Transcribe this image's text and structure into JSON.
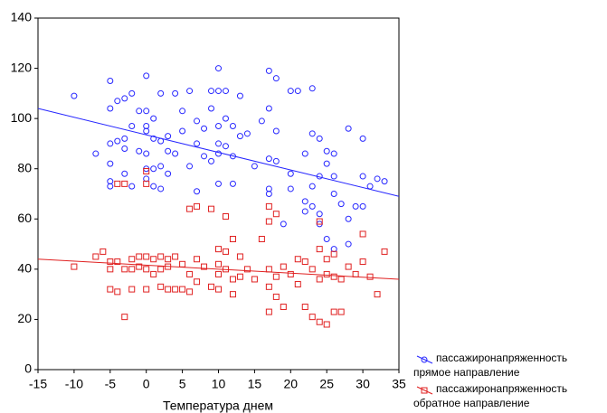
{
  "chart_data": {
    "type": "scatter",
    "x_label": "Температура днем",
    "xlim": [
      -15,
      35
    ],
    "xticks": [
      -15,
      -10,
      -5,
      0,
      5,
      10,
      15,
      20,
      25,
      30,
      35
    ],
    "ylim": [
      0,
      140
    ],
    "yticks": [
      0,
      20,
      40,
      60,
      80,
      100,
      120,
      140
    ],
    "series": [
      {
        "name": "пассажиронапряженность прямое направление",
        "color": "#2626ff",
        "marker": "circle",
        "x": [
          -10,
          -7,
          -5,
          -5,
          -5,
          -5,
          -5,
          -5,
          -4,
          -4,
          -3,
          -3,
          -3,
          -3,
          -2,
          -2,
          -2,
          -1,
          -1,
          0,
          0,
          0,
          0,
          0,
          0,
          0,
          1,
          1,
          1,
          1,
          2,
          2,
          2,
          2,
          3,
          3,
          3,
          4,
          4,
          5,
          5,
          6,
          6,
          7,
          7,
          7,
          8,
          8,
          9,
          9,
          9,
          10,
          10,
          10,
          10,
          10,
          10,
          11,
          11,
          11,
          12,
          12,
          12,
          13,
          13,
          14,
          15,
          16,
          17,
          17,
          17,
          17,
          17,
          18,
          18,
          18,
          19,
          20,
          20,
          20,
          21,
          22,
          22,
          22,
          23,
          23,
          23,
          23,
          24,
          24,
          24,
          24,
          25,
          25,
          25,
          26,
          26,
          26,
          26,
          27,
          28,
          28,
          28,
          29,
          30,
          30,
          30,
          31,
          32,
          33
        ],
        "y": [
          109,
          86,
          115,
          104,
          90,
          82,
          75,
          73,
          91,
          107,
          108,
          92,
          88,
          78,
          97,
          110,
          73,
          103,
          87,
          117,
          103,
          97,
          95,
          86,
          80,
          76,
          100,
          92,
          80,
          73,
          110,
          91,
          81,
          72,
          87,
          93,
          78,
          110,
          86,
          103,
          95,
          111,
          81,
          71,
          99,
          90,
          85,
          96,
          104,
          111,
          83,
          120,
          111,
          97,
          90,
          86,
          74,
          111,
          100,
          89,
          97,
          85,
          74,
          109,
          93,
          94,
          81,
          99,
          119,
          104,
          84,
          72,
          70,
          116,
          95,
          83,
          58,
          111,
          78,
          72,
          111,
          86,
          67,
          63,
          112,
          94,
          73,
          65,
          92,
          77,
          62,
          58,
          87,
          52,
          82,
          86,
          77,
          70,
          48,
          66,
          96,
          60,
          50,
          65,
          92,
          77,
          65,
          73,
          76,
          75
        ],
        "fit_x": [
          -15,
          35
        ],
        "fit_y": [
          104,
          69
        ]
      },
      {
        "name": "пассажиронапряженность обратное направление",
        "color": "#e02020",
        "marker": "square",
        "x": [
          -10,
          -7,
          -6,
          -5,
          -5,
          -5,
          -4,
          -4,
          -4,
          -3,
          -3,
          -3,
          -2,
          -2,
          -2,
          -1,
          -1,
          0,
          0,
          0,
          0,
          0,
          1,
          1,
          2,
          2,
          2,
          3,
          3,
          3,
          4,
          4,
          5,
          5,
          6,
          6,
          6,
          7,
          7,
          7,
          8,
          9,
          9,
          10,
          10,
          10,
          10,
          11,
          11,
          11,
          12,
          12,
          12,
          13,
          13,
          14,
          15,
          16,
          17,
          17,
          17,
          17,
          17,
          18,
          18,
          18,
          19,
          19,
          20,
          21,
          21,
          22,
          22,
          23,
          23,
          24,
          24,
          24,
          24,
          25,
          25,
          25,
          26,
          26,
          26,
          27,
          27,
          28,
          29,
          30,
          30,
          31,
          32,
          33
        ],
        "y": [
          41,
          45,
          47,
          43,
          40,
          32,
          74,
          43,
          31,
          74,
          40,
          21,
          44,
          40,
          32,
          45,
          41,
          79,
          74,
          45,
          40,
          32,
          44,
          38,
          45,
          40,
          33,
          44,
          41,
          32,
          45,
          32,
          42,
          32,
          64,
          38,
          31,
          65,
          44,
          35,
          41,
          64,
          33,
          48,
          42,
          38,
          32,
          61,
          47,
          40,
          52,
          36,
          30,
          45,
          37,
          40,
          36,
          52,
          65,
          59,
          40,
          33,
          23,
          62,
          37,
          29,
          41,
          25,
          38,
          44,
          34,
          43,
          25,
          40,
          21,
          59,
          48,
          36,
          19,
          44,
          38,
          18,
          46,
          37,
          23,
          36,
          23,
          41,
          38,
          54,
          43,
          37,
          30,
          47
        ],
        "fit_x": [
          -15,
          35
        ],
        "fit_y": [
          44,
          36
        ]
      }
    ]
  }
}
